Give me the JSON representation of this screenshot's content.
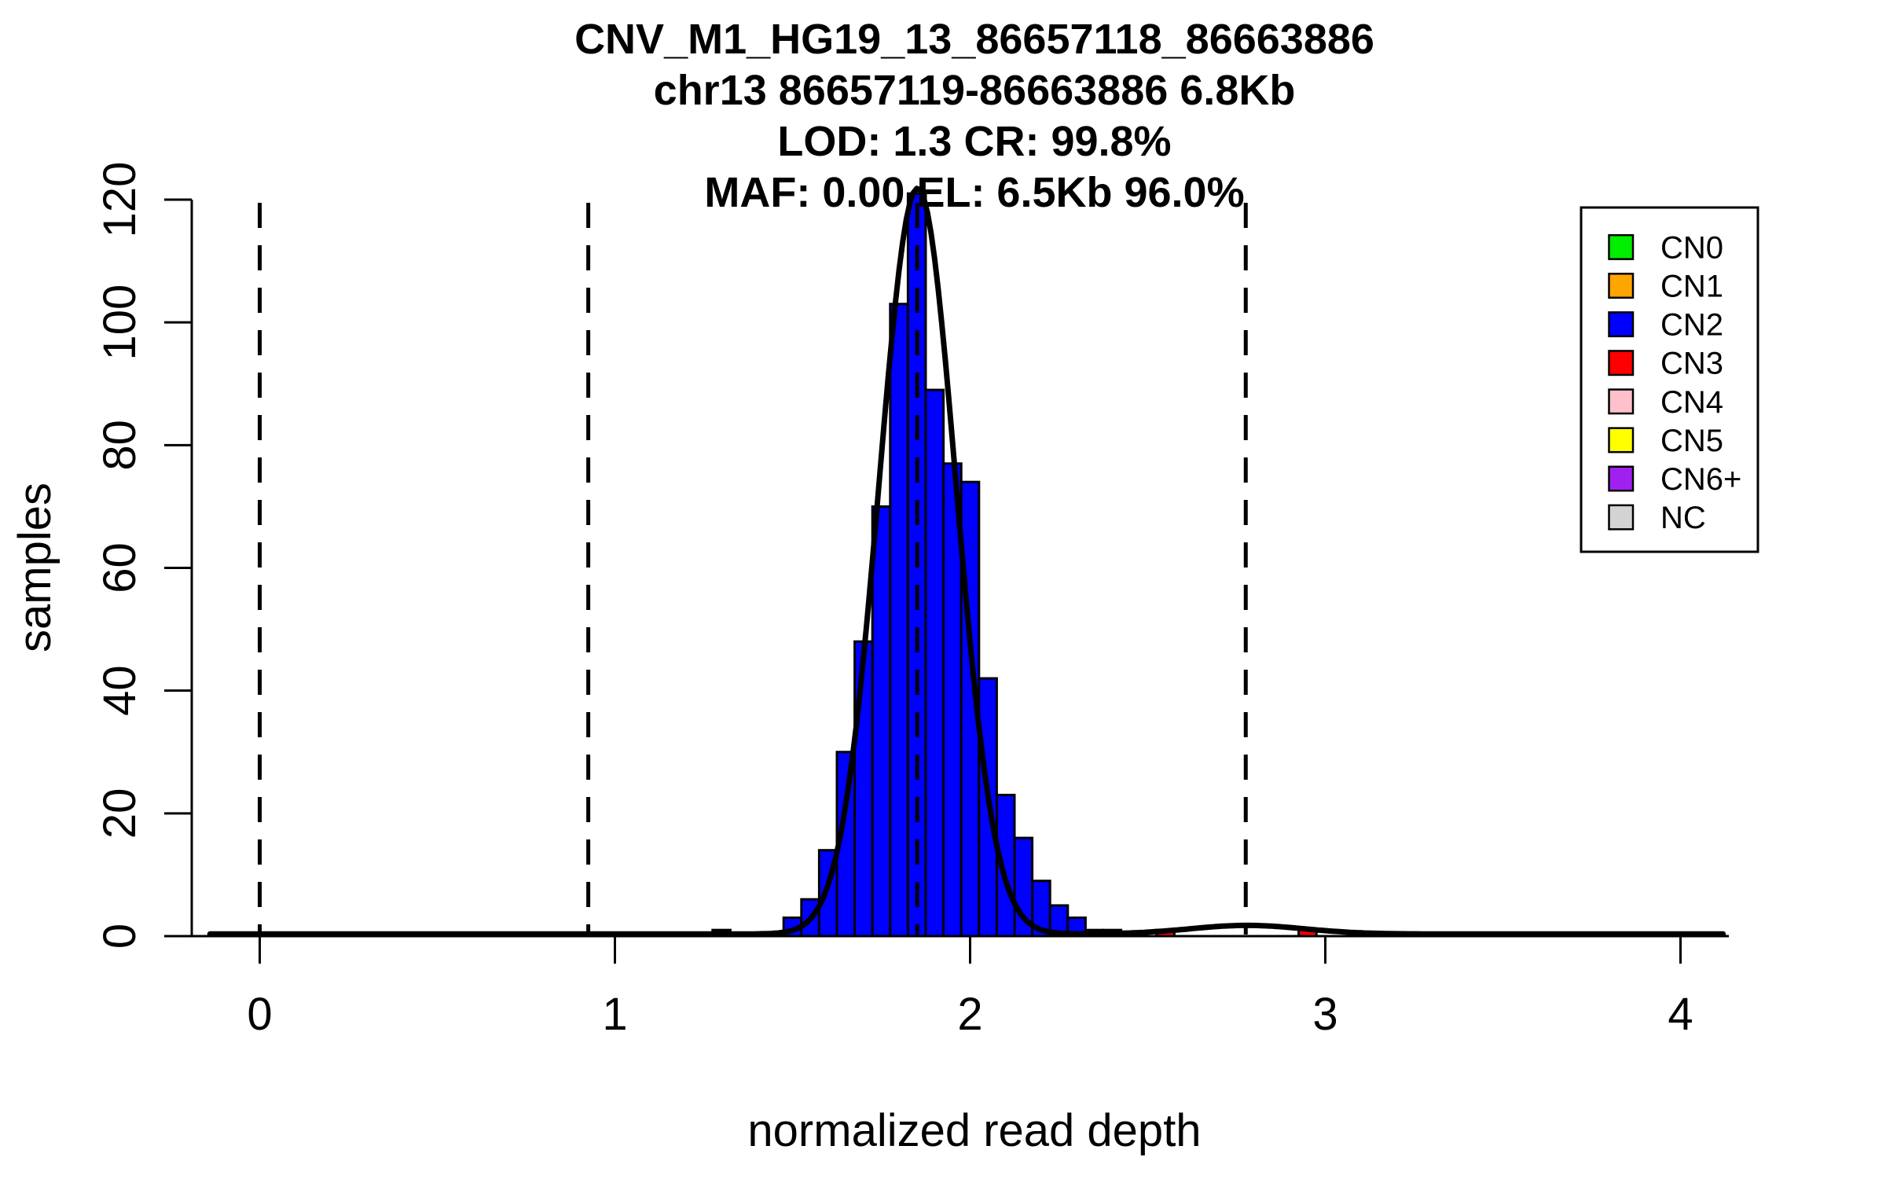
{
  "figure": {
    "background_color": "#ffffff",
    "foreground_color": "#000000"
  },
  "chart_data": {
    "type": "bar",
    "subtype": "histogram-with-gaussian-fit",
    "title_lines": [
      "CNV_M1_HG19_13_86657118_86663886",
      "chr13 86657119-86663886 6.8Kb",
      "LOD: 1.3 CR: 99.8%",
      "MAF: 0.00 EL: 6.5Kb 96.0%"
    ],
    "xlabel": "normalized read depth",
    "ylabel": "samples",
    "xlim": [
      -0.15,
      4.15
    ],
    "ylim": [
      0,
      120
    ],
    "x_ticks": [
      0,
      1,
      2,
      3,
      4
    ],
    "y_ticks": [
      0,
      20,
      40,
      60,
      80,
      100,
      120
    ],
    "grid": false,
    "bin_width": 0.05,
    "bars": [
      {
        "x0": 1.275,
        "x1": 1.325,
        "count": 1,
        "cn": "CN2"
      },
      {
        "x0": 1.475,
        "x1": 1.525,
        "count": 3,
        "cn": "CN2"
      },
      {
        "x0": 1.525,
        "x1": 1.575,
        "count": 6,
        "cn": "CN2"
      },
      {
        "x0": 1.575,
        "x1": 1.625,
        "count": 14,
        "cn": "CN2"
      },
      {
        "x0": 1.625,
        "x1": 1.675,
        "count": 30,
        "cn": "CN2"
      },
      {
        "x0": 1.675,
        "x1": 1.725,
        "count": 48,
        "cn": "CN2"
      },
      {
        "x0": 1.725,
        "x1": 1.775,
        "count": 70,
        "cn": "CN2"
      },
      {
        "x0": 1.775,
        "x1": 1.825,
        "count": 103,
        "cn": "CN2"
      },
      {
        "x0": 1.825,
        "x1": 1.875,
        "count": 121,
        "cn": "CN2"
      },
      {
        "x0": 1.875,
        "x1": 1.925,
        "count": 89,
        "cn": "CN2"
      },
      {
        "x0": 1.925,
        "x1": 1.975,
        "count": 77,
        "cn": "CN2"
      },
      {
        "x0": 1.975,
        "x1": 2.025,
        "count": 74,
        "cn": "CN2"
      },
      {
        "x0": 2.025,
        "x1": 2.075,
        "count": 42,
        "cn": "CN2"
      },
      {
        "x0": 2.075,
        "x1": 2.125,
        "count": 23,
        "cn": "CN2"
      },
      {
        "x0": 2.125,
        "x1": 2.175,
        "count": 16,
        "cn": "CN2"
      },
      {
        "x0": 2.175,
        "x1": 2.225,
        "count": 9,
        "cn": "CN2"
      },
      {
        "x0": 2.225,
        "x1": 2.275,
        "count": 5,
        "cn": "CN2"
      },
      {
        "x0": 2.275,
        "x1": 2.325,
        "count": 3,
        "cn": "CN2"
      },
      {
        "x0": 2.325,
        "x1": 2.375,
        "count": 1,
        "cn": "NC"
      },
      {
        "x0": 2.375,
        "x1": 2.425,
        "count": 1,
        "cn": "NC"
      },
      {
        "x0": 2.525,
        "x1": 2.575,
        "count": 1,
        "cn": "CN3"
      },
      {
        "x0": 2.925,
        "x1": 2.975,
        "count": 1,
        "cn": "CN3"
      }
    ],
    "copy_number_guides": {
      "style": "dashed",
      "values": [
        0,
        0.925,
        1.851,
        2.776
      ]
    },
    "fit_curve": {
      "baseline": 0.35,
      "components": [
        {
          "amplitude": 121.5,
          "mean": 1.852,
          "sd": 0.108
        },
        {
          "amplitude": 1.4,
          "mean": 2.78,
          "sd": 0.16
        }
      ],
      "x_range": [
        -0.14,
        4.12
      ]
    },
    "cn_colors": {
      "CN0": "#00EE00",
      "CN1": "#FFA500",
      "CN2": "#0000FF",
      "CN3": "#FF0000",
      "CN4": "#FFC0CB",
      "CN5": "#FFFF00",
      "CN6+": "#A020F0",
      "NC": "#D3D3D3"
    },
    "legend": {
      "position": "top-right",
      "entries": [
        "CN0",
        "CN1",
        "CN2",
        "CN3",
        "CN4",
        "CN5",
        "CN6+",
        "NC"
      ]
    }
  }
}
